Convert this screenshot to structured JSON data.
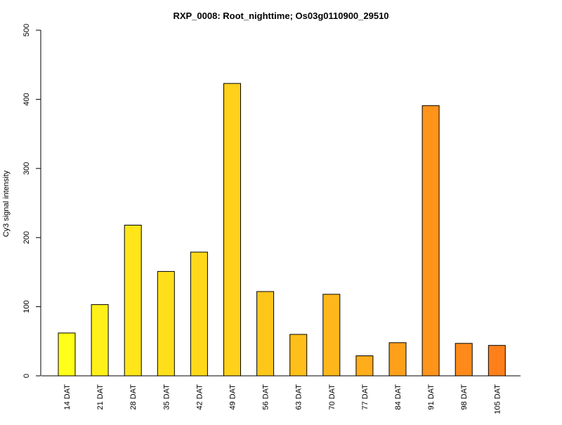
{
  "chart_data": {
    "type": "bar",
    "title": "RXP_0008: Root_nighttime; Os03g0110900_29510",
    "xlabel": "",
    "ylabel": "Cy3 signal intensity",
    "ylim": [
      0,
      500
    ],
    "yticks": [
      0,
      100,
      200,
      300,
      400,
      500
    ],
    "grid": false,
    "legend": "none",
    "categories": [
      "14 DAT",
      "21 DAT",
      "28 DAT",
      "35 DAT",
      "42 DAT",
      "49 DAT",
      "56 DAT",
      "63 DAT",
      "70 DAT",
      "77 DAT",
      "84 DAT",
      "91 DAT",
      "98 DAT",
      "105 DAT"
    ],
    "values": [
      62,
      103,
      218,
      151,
      179,
      423,
      122,
      60,
      118,
      29,
      48,
      391,
      47,
      44
    ],
    "colors": [
      "#ffff1a",
      "#fff01a",
      "#ffe51a",
      "#ffdf1a",
      "#ffd81a",
      "#ffd11a",
      "#ffc61a",
      "#ffbf1a",
      "#ffb61a",
      "#ffad1a",
      "#ffa01a",
      "#ff941a",
      "#ff8a1a",
      "#ff801a"
    ]
  }
}
